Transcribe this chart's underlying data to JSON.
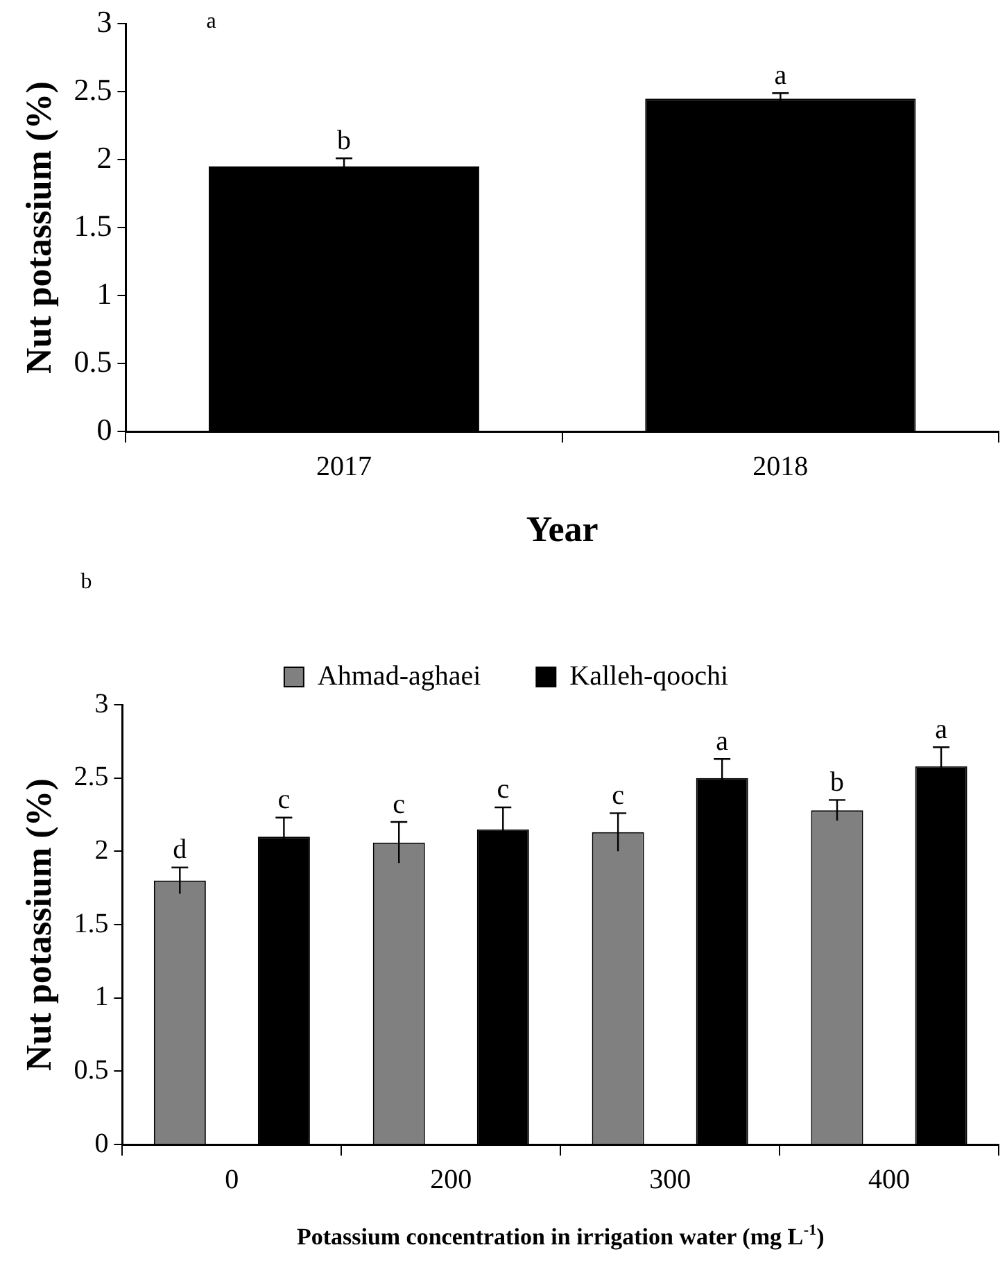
{
  "chart_data": [
    {
      "type": "bar",
      "annotations": [
        "a"
      ],
      "xlabel": "Year",
      "ylabel": "Nut potassium (%)",
      "categories": [
        "2017",
        "2018"
      ],
      "series": [
        {
          "color": "#000000",
          "values": [
            1.95,
            2.45
          ],
          "errors": [
            0.06,
            0.04
          ],
          "value_labels": [
            "b",
            "a"
          ]
        }
      ],
      "ylim": [
        0,
        3
      ],
      "yticks": [
        0,
        0.5,
        1,
        1.5,
        2,
        2.5,
        3
      ],
      "grid": false,
      "legend": false
    },
    {
      "type": "bar",
      "annotations": [
        "b"
      ],
      "xlabel": "Potassium concentration in irrigation water (mg L$^{-1}$)",
      "ylabel": "Nut potassium (%)",
      "categories": [
        "0",
        "200",
        "300",
        "400"
      ],
      "series": [
        {
          "name": "Ahmad-aghaei",
          "color": "#808080",
          "values": [
            1.8,
            2.06,
            2.13,
            2.28
          ],
          "errors": [
            0.09,
            0.14,
            0.13,
            0.07
          ],
          "value_labels": [
            "d",
            "c",
            "c",
            "b"
          ]
        },
        {
          "name": "Kalleh-qoochi",
          "color": "#000000",
          "values": [
            2.1,
            2.15,
            2.5,
            2.58
          ],
          "errors": [
            0.13,
            0.15,
            0.13,
            0.13
          ],
          "value_labels": [
            "c",
            "c",
            "a",
            "a"
          ]
        }
      ],
      "ylim": [
        0,
        3
      ],
      "yticks": [
        0,
        0.5,
        1,
        1.5,
        2,
        2.5,
        3
      ],
      "grid": false,
      "legend": "top"
    }
  ]
}
